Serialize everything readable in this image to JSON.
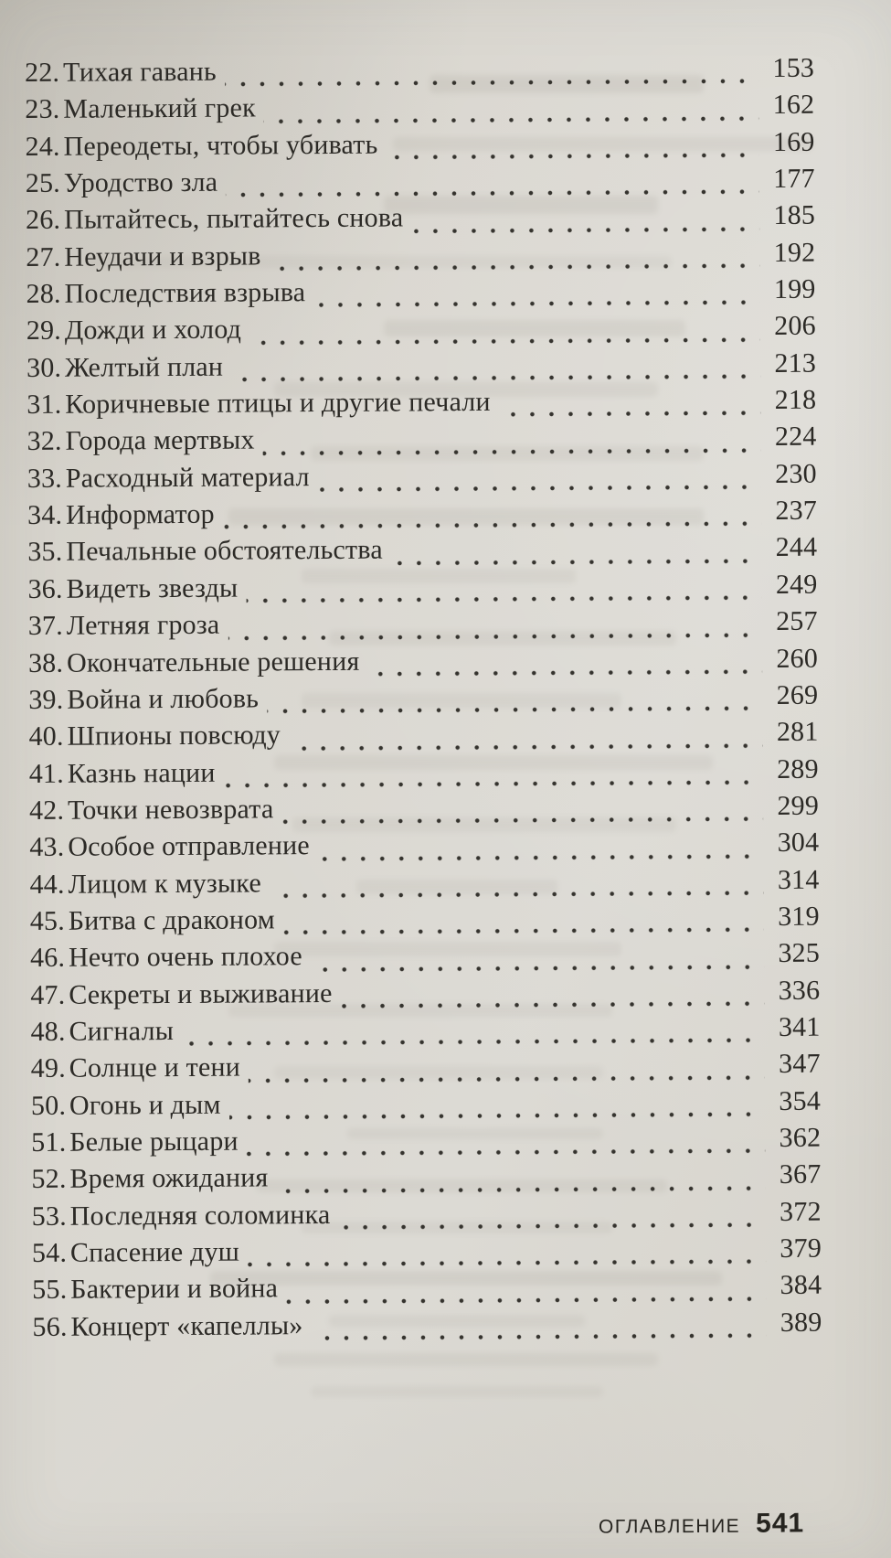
{
  "toc": {
    "entries": [
      {
        "num": "22.",
        "title": "Тихая гавань",
        "page": "153"
      },
      {
        "num": "23.",
        "title": "Маленький грек",
        "page": "162"
      },
      {
        "num": "24.",
        "title": "Переодеты, чтобы убивать",
        "page": "169"
      },
      {
        "num": "25.",
        "title": "Уродство зла",
        "page": "177"
      },
      {
        "num": "26.",
        "title": "Пытайтесь, пытайтесь снова",
        "page": "185"
      },
      {
        "num": "27.",
        "title": "Неудачи и взрыв",
        "page": "192"
      },
      {
        "num": "28.",
        "title": "Последствия взрыва",
        "page": "199"
      },
      {
        "num": "29.",
        "title": "Дожди и холод",
        "page": "206"
      },
      {
        "num": "30.",
        "title": "Желтый план",
        "page": "213"
      },
      {
        "num": "31.",
        "title": "Коричневые птицы и другие печали",
        "page": "218"
      },
      {
        "num": "32.",
        "title": "Города мертвых",
        "page": "224"
      },
      {
        "num": "33.",
        "title": "Расходный материал",
        "page": "230"
      },
      {
        "num": "34.",
        "title": "Информатор",
        "page": "237"
      },
      {
        "num": "35.",
        "title": "Печальные обстоятельства",
        "page": "244"
      },
      {
        "num": "36.",
        "title": "Видеть звезды",
        "page": "249"
      },
      {
        "num": "37.",
        "title": "Летняя гроза",
        "page": "257"
      },
      {
        "num": "38.",
        "title": "Окончательные решения",
        "page": "260"
      },
      {
        "num": "39.",
        "title": "Война и любовь",
        "page": "269"
      },
      {
        "num": "40.",
        "title": "Шпионы повсюду",
        "page": "281"
      },
      {
        "num": "41.",
        "title": "Казнь нации",
        "page": "289"
      },
      {
        "num": "42.",
        "title": "Точки невозврата",
        "page": "299"
      },
      {
        "num": "43.",
        "title": "Особое отправление",
        "page": "304"
      },
      {
        "num": "44.",
        "title": "Лицом к музыке",
        "page": "314"
      },
      {
        "num": "45.",
        "title": "Битва с драконом",
        "page": "319"
      },
      {
        "num": "46.",
        "title": "Нечто очень плохое",
        "page": "325"
      },
      {
        "num": "47.",
        "title": "Секреты и выживание",
        "page": "336"
      },
      {
        "num": "48.",
        "title": "Сигналы",
        "page": "341"
      },
      {
        "num": "49.",
        "title": "Солнце и тени",
        "page": "347"
      },
      {
        "num": "50.",
        "title": "Огонь и дым",
        "page": "354"
      },
      {
        "num": "51.",
        "title": "Белые рыцари",
        "page": "362"
      },
      {
        "num": "52.",
        "title": "Время ожидания",
        "page": "367"
      },
      {
        "num": "53.",
        "title": "Последняя соломинка",
        "page": "372"
      },
      {
        "num": "54.",
        "title": "Спасение душ",
        "page": "379"
      },
      {
        "num": "55.",
        "title": "Бактерии и война",
        "page": "384"
      },
      {
        "num": "56.",
        "title": "Концерт «капеллы»",
        "page": "389"
      }
    ],
    "footer": {
      "label": "ОГЛАВЛЕНИЕ",
      "page": "541"
    }
  },
  "colors": {
    "paper": "#d9d6cf",
    "ink": "#2c2a26",
    "footer_ink": "#26241f"
  }
}
